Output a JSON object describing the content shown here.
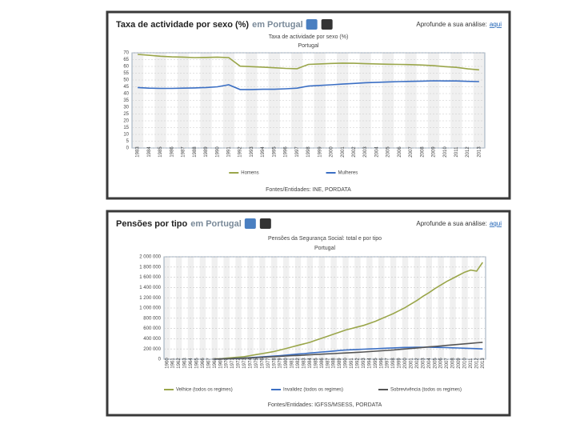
{
  "chart_data": [
    {
      "type": "line",
      "panel_title": "Taxa de actividade por sexo (%)",
      "panel_place": "em Portugal",
      "analysis_text": "Aprofunde a sua análise:",
      "analysis_link": "aqui",
      "title": "Taxa de actividade por sexo (%)",
      "subtitle": "Portugal",
      "source": "Fontes/Entidades: INE, PORDATA",
      "categories": [
        "1983",
        "1984",
        "1985",
        "1986",
        "1987",
        "1988",
        "1989",
        "1990",
        "1991",
        "1992",
        "1993",
        "1994",
        "1995",
        "1996",
        "1997",
        "1998",
        "1999",
        "2000",
        "2001",
        "2002",
        "2003",
        "2004",
        "2005",
        "2006",
        "2007",
        "2008",
        "2009",
        "2010",
        "2011",
        "2012",
        "2013"
      ],
      "series": [
        {
          "name": "Homens",
          "color": "#9aa64a",
          "values": [
            68.8,
            68.2,
            67.5,
            67,
            66.8,
            66.5,
            66.6,
            66.8,
            66.5,
            60.2,
            59.8,
            59.5,
            59,
            58.5,
            58.3,
            61.5,
            61.8,
            62.2,
            62.4,
            62.3,
            62,
            61.8,
            61.6,
            61.5,
            61.3,
            61,
            60.5,
            59.8,
            59.3,
            58.2,
            57.5
          ]
        },
        {
          "name": "Mulheres",
          "color": "#3b6fc4",
          "values": [
            44.5,
            44,
            43.8,
            43.8,
            44,
            44.2,
            44.5,
            45,
            46.5,
            43,
            43,
            43.2,
            43.2,
            43.5,
            44,
            45.5,
            46,
            46.5,
            47,
            47.5,
            48,
            48.3,
            48.6,
            48.8,
            49,
            49.2,
            49.4,
            49.3,
            49.3,
            49,
            48.8
          ]
        }
      ],
      "ylim": [
        0,
        70
      ],
      "yticks": [
        0,
        5,
        10,
        15,
        20,
        25,
        30,
        35,
        40,
        45,
        50,
        55,
        60,
        65,
        70
      ],
      "grid": true
    },
    {
      "type": "line",
      "panel_title": "Pensões por tipo",
      "panel_place": "em Portugal",
      "analysis_text": "Aprofunde a sua análise:",
      "analysis_link": "aqui",
      "title": "Pensões da Segurança Social: total e por tipo",
      "subtitle": "Portugal",
      "source": "Fontes/Entidades: IGFSS/MSESS, PORDATA",
      "categories": [
        "1960",
        "1961",
        "1962",
        "1963",
        "1964",
        "1965",
        "1966",
        "1967",
        "1968",
        "1969",
        "1970",
        "1971",
        "1972",
        "1973",
        "1974",
        "1975",
        "1976",
        "1977",
        "1978",
        "1979",
        "1980",
        "1981",
        "1982",
        "1983",
        "1984",
        "1985",
        "1986",
        "1987",
        "1988",
        "1989",
        "1990",
        "1991",
        "1992",
        "1993",
        "1994",
        "1995",
        "1996",
        "1997",
        "1998",
        "1999",
        "2000",
        "2001",
        "2002",
        "2003",
        "2004",
        "2005",
        "2006",
        "2007",
        "2008",
        "2009",
        "2010",
        "2011",
        "2012",
        "2013"
      ],
      "series": [
        {
          "name": "Velhice (todos os regimes)",
          "color": "#9aa64a",
          "values": [
            null,
            null,
            null,
            null,
            null,
            null,
            null,
            null,
            5000,
            10000,
            20000,
            30000,
            40000,
            50000,
            70000,
            90000,
            110000,
            130000,
            150000,
            180000,
            210000,
            240000,
            270000,
            300000,
            330000,
            370000,
            410000,
            450000,
            490000,
            530000,
            570000,
            600000,
            630000,
            660000,
            700000,
            740000,
            790000,
            840000,
            890000,
            950000,
            1010000,
            1080000,
            1150000,
            1230000,
            1300000,
            1380000,
            1450000,
            1520000,
            1580000,
            1640000,
            1700000,
            1740000,
            1720000,
            1890000
          ]
        },
        {
          "name": "Invalidez (todos os regimes)",
          "color": "#3b6fc4",
          "values": [
            null,
            null,
            null,
            null,
            null,
            null,
            null,
            null,
            2000,
            4000,
            8000,
            12000,
            18000,
            24000,
            30000,
            38000,
            46000,
            54000,
            62000,
            70000,
            80000,
            90000,
            100000,
            110000,
            120000,
            130000,
            140000,
            150000,
            160000,
            170000,
            180000,
            185000,
            190000,
            195000,
            200000,
            205000,
            210000,
            215000,
            220000,
            225000,
            230000,
            232000,
            234000,
            235000,
            234000,
            232000,
            230000,
            226000,
            222000,
            218000,
            214000,
            210000,
            206000,
            200000
          ]
        },
        {
          "name": "Sobrevivência (todos os regimes)",
          "color": "#555555",
          "values": [
            null,
            null,
            null,
            null,
            null,
            null,
            null,
            null,
            3000,
            5000,
            8000,
            12000,
            16000,
            20000,
            26000,
            32000,
            38000,
            44000,
            50000,
            56000,
            62000,
            68000,
            74000,
            80000,
            86000,
            92000,
            98000,
            104000,
            110000,
            116000,
            122000,
            128000,
            134000,
            140000,
            148000,
            156000,
            164000,
            172000,
            180000,
            190000,
            200000,
            210000,
            220000,
            230000,
            240000,
            250000,
            260000,
            270000,
            280000,
            290000,
            300000,
            310000,
            320000,
            330000
          ]
        }
      ],
      "ylim": [
        0,
        2000000
      ],
      "yticks": [
        0,
        {
          "value": 200000,
          "label": "200 000"
        },
        {
          "value": 400000,
          "label": "400 000"
        },
        {
          "value": 600000,
          "label": "600 000"
        },
        {
          "value": 800000,
          "label": "800 000"
        },
        {
          "value": 1000000,
          "label": "1 000 000"
        },
        {
          "value": 1200000,
          "label": "1 200 000"
        },
        {
          "value": 1400000,
          "label": "1 400 000"
        },
        {
          "value": 1600000,
          "label": "1 600 000"
        },
        {
          "value": 1800000,
          "label": "1 800 000"
        },
        {
          "value": 2000000,
          "label": "2 000 000"
        }
      ],
      "grid": true
    }
  ]
}
